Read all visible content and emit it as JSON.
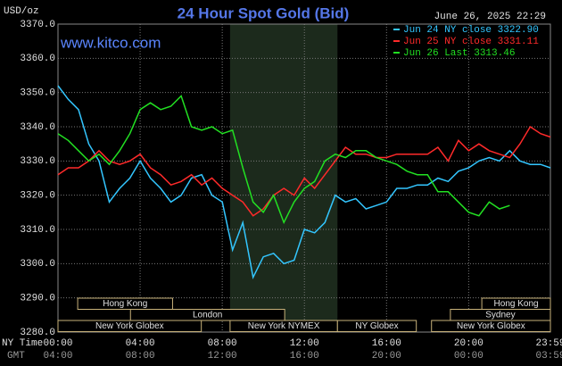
{
  "chart_data": {
    "type": "line",
    "title": "24 Hour Spot Gold (Bid)",
    "y_label": "USD/oz",
    "timestamp": "June 26, 2025 22:29",
    "watermark": "www.kitco.com",
    "x_label": "NY Time",
    "x2_label": "GMT",
    "xlim": [
      0,
      23.98
    ],
    "ylim": [
      3280,
      3370
    ],
    "xticks": [
      {
        "value": 0,
        "label": "00:00",
        "gmt_label": "04:00"
      },
      {
        "value": 4,
        "label": "04:00",
        "gmt_label": "08:00"
      },
      {
        "value": 8,
        "label": "08:00",
        "gmt_label": "12:00"
      },
      {
        "value": 12,
        "label": "12:00",
        "gmt_label": "16:00"
      },
      {
        "value": 16,
        "label": "16:00",
        "gmt_label": "20:00"
      },
      {
        "value": 20,
        "label": "20:00",
        "gmt_label": "00:00"
      },
      {
        "value": 23.98,
        "label": "23:59",
        "gmt_label": "03:59"
      }
    ],
    "yticks": [
      {
        "value": 3280,
        "label": "3280.0"
      },
      {
        "value": 3290,
        "label": "3290.0"
      },
      {
        "value": 3300,
        "label": "3300.0"
      },
      {
        "value": 3310,
        "label": "3310.0"
      },
      {
        "value": 3320,
        "label": "3320.0"
      },
      {
        "value": 3330,
        "label": "3330.0"
      },
      {
        "value": 3340,
        "label": "3340.0"
      },
      {
        "value": 3350,
        "label": "3350.0"
      },
      {
        "value": 3360,
        "label": "3360.0"
      },
      {
        "value": 3370,
        "label": "3370.0"
      }
    ],
    "grid": true,
    "shaded_range": [
      8.38,
      13.61
    ],
    "sessions": [
      {
        "label": "Hong Kong",
        "start": 0.96,
        "end": 5.58,
        "row": 0
      },
      {
        "label": "London",
        "start": 3.53,
        "end": 11.04,
        "row": 1
      },
      {
        "label": "New York Globex",
        "start": 0,
        "end": 6.98,
        "row": 2
      },
      {
        "label": "New York NYMEX",
        "start": 8.38,
        "end": 13.61,
        "row": 2
      },
      {
        "label": "NY Globex",
        "start": 13.61,
        "end": 17.45,
        "row": 2
      },
      {
        "label": "Hong Kong",
        "start": 20.64,
        "end": 23.98,
        "row": 0
      },
      {
        "label": "Sydney",
        "start": 19.11,
        "end": 23.98,
        "row": 1
      },
      {
        "label": "New York Globex",
        "start": 18.19,
        "end": 23.98,
        "row": 2
      }
    ],
    "x": [
      0,
      0.5,
      1,
      1.5,
      2,
      2.5,
      3,
      3.5,
      4,
      4.5,
      5,
      5.5,
      6,
      6.5,
      7,
      7.5,
      8,
      8.5,
      9,
      9.5,
      10,
      10.5,
      11,
      11.5,
      12,
      12.5,
      13,
      13.5,
      14,
      14.5,
      15,
      15.5,
      16,
      16.5,
      17,
      17.5,
      18,
      18.5,
      19,
      19.5,
      20,
      20.5,
      21,
      21.5,
      22,
      22.5,
      23,
      23.5,
      23.98
    ],
    "series": [
      {
        "name": "Jun 24 NY close 3322.90",
        "color": "#33c6ff",
        "values": [
          3352,
          3348,
          3345,
          3335,
          3330,
          3318,
          3322,
          3325,
          3330,
          3325,
          3322,
          3318,
          3320,
          3325,
          3326,
          3320,
          3318,
          3304,
          3312,
          3296,
          3302,
          3303,
          3300,
          3301,
          3310,
          3309,
          3312,
          3320,
          3318,
          3319,
          3316,
          3317,
          3318,
          3322,
          3322,
          3323,
          3323,
          3325,
          3324,
          3327,
          3328,
          3330,
          3331,
          3330,
          3333,
          3330,
          3329,
          3329,
          3328
        ]
      },
      {
        "name": "Jun 25 NY close 3331.11",
        "color": "#ff2a2a",
        "values": [
          3326,
          3328,
          3328,
          3330,
          3333,
          3330,
          3329,
          3330,
          3332,
          3328,
          3326,
          3323,
          3324,
          3326,
          3323,
          3325,
          3322,
          3320,
          3318,
          3314,
          3316,
          3320,
          3322,
          3320,
          3325,
          3322,
          3326,
          3330,
          3334,
          3332,
          3332,
          3331,
          3331,
          3332,
          3332,
          3332,
          3332,
          3334,
          3330,
          3336,
          3333,
          3335,
          3333,
          3332,
          3331,
          3335,
          3340,
          3338,
          3337
        ]
      },
      {
        "name": "Jun 26 Last 3313.46",
        "color": "#22e022",
        "values": [
          3338,
          3336,
          3333,
          3330,
          3332,
          3329,
          3333,
          3338,
          3345,
          3347,
          3345,
          3346,
          3349,
          3340,
          3339,
          3340,
          3338,
          3339,
          3328,
          3318,
          3315,
          3320,
          3312,
          3318,
          3322,
          3324,
          3330,
          3332,
          3331,
          3333,
          3333,
          3331,
          3330,
          3329,
          3327,
          3326,
          3326,
          3321,
          3321,
          3318,
          3315,
          3314,
          3318,
          3316,
          3317,
          null,
          null,
          null,
          null
        ]
      }
    ]
  }
}
